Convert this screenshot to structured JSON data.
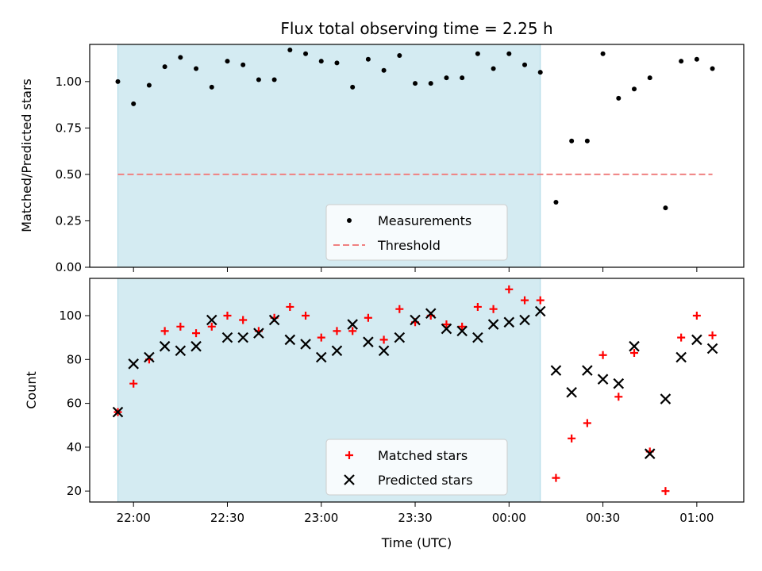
{
  "chart_data": [
    {
      "type": "scatter",
      "title": "Flux total observing time = 2.25 h",
      "ylabel": "Matched/Predicted stars",
      "xlabel": "",
      "ylim": [
        0,
        1.2
      ],
      "yticks": [
        "0.00",
        "0.25",
        "0.50",
        "0.75",
        "1.00"
      ],
      "ytick_values": [
        0,
        0.25,
        0.5,
        0.75,
        1.0
      ],
      "shaded_span": {
        "start": "21:55",
        "end": "00:10",
        "color": "#add8e6"
      },
      "legend": {
        "placement": "lower-center",
        "entries": [
          "Measurements",
          "Threshold"
        ]
      },
      "threshold": {
        "name": "Threshold",
        "y": 0.5,
        "x_start": "21:55",
        "x_end": "01:05",
        "color": "#f08080"
      },
      "series": [
        {
          "name": "Measurements",
          "color": "#000000",
          "marker": "dot",
          "x": [
            "21:55",
            "22:00",
            "22:05",
            "22:10",
            "22:15",
            "22:20",
            "22:25",
            "22:30",
            "22:35",
            "22:40",
            "22:45",
            "22:50",
            "22:55",
            "23:00",
            "23:05",
            "23:10",
            "23:15",
            "23:20",
            "23:25",
            "23:30",
            "23:35",
            "23:40",
            "23:45",
            "23:50",
            "23:55",
            "00:00",
            "00:05",
            "00:10",
            "00:15",
            "00:20",
            "00:25",
            "00:30",
            "00:35",
            "00:40",
            "00:45",
            "00:50",
            "00:55",
            "01:00",
            "01:05"
          ],
          "y": [
            1.0,
            0.88,
            0.98,
            1.08,
            1.13,
            1.07,
            0.97,
            1.11,
            1.09,
            1.01,
            1.01,
            1.17,
            1.15,
            1.11,
            1.1,
            0.97,
            1.12,
            1.06,
            1.14,
            0.99,
            0.99,
            1.02,
            1.02,
            1.15,
            1.07,
            1.15,
            1.09,
            1.05,
            0.35,
            0.68,
            0.68,
            1.15,
            0.91,
            0.96,
            1.02,
            0.32,
            1.11,
            1.12,
            1.07
          ]
        }
      ]
    },
    {
      "type": "scatter",
      "title": "",
      "ylabel": "Count",
      "xlabel": "Time (UTC)",
      "ylim": [
        15,
        117
      ],
      "yticks": [
        "20",
        "40",
        "60",
        "80",
        "100"
      ],
      "ytick_values": [
        20,
        40,
        60,
        80,
        100
      ],
      "xticks": [
        "22:00",
        "22:30",
        "23:00",
        "23:30",
        "00:00",
        "00:30",
        "01:00"
      ],
      "xlim": [
        "21:46",
        "01:15"
      ],
      "shaded_span": {
        "start": "21:55",
        "end": "00:10",
        "color": "#add8e6"
      },
      "legend": {
        "placement": "lower-center",
        "entries": [
          "Matched stars",
          "Predicted stars"
        ]
      },
      "series": [
        {
          "name": "Matched stars",
          "color": "#ff0000",
          "marker": "plus",
          "x": [
            "21:55",
            "22:00",
            "22:05",
            "22:10",
            "22:15",
            "22:20",
            "22:25",
            "22:30",
            "22:35",
            "22:40",
            "22:45",
            "22:50",
            "22:55",
            "23:00",
            "23:05",
            "23:10",
            "23:15",
            "23:20",
            "23:25",
            "23:30",
            "23:35",
            "23:40",
            "23:45",
            "23:50",
            "23:55",
            "00:00",
            "00:05",
            "00:10",
            "00:15",
            "00:20",
            "00:25",
            "00:30",
            "00:35",
            "00:40",
            "00:45",
            "00:50",
            "00:55",
            "01:00",
            "01:05"
          ],
          "y": [
            56,
            69,
            80,
            93,
            95,
            92,
            95,
            100,
            98,
            93,
            99,
            104,
            100,
            90,
            93,
            93,
            99,
            89,
            103,
            97,
            100,
            96,
            95,
            104,
            103,
            112,
            107,
            107,
            26,
            44,
            51,
            82,
            63,
            83,
            38,
            20,
            90,
            100,
            91
          ]
        },
        {
          "name": "Predicted stars",
          "color": "#000000",
          "marker": "x",
          "x": [
            "21:55",
            "22:00",
            "22:05",
            "22:10",
            "22:15",
            "22:20",
            "22:25",
            "22:30",
            "22:35",
            "22:40",
            "22:45",
            "22:50",
            "22:55",
            "23:00",
            "23:05",
            "23:10",
            "23:15",
            "23:20",
            "23:25",
            "23:30",
            "23:35",
            "23:40",
            "23:45",
            "23:50",
            "23:55",
            "00:00",
            "00:05",
            "00:10",
            "00:15",
            "00:20",
            "00:25",
            "00:30",
            "00:35",
            "00:40",
            "00:45",
            "00:50",
            "00:55",
            "01:00",
            "01:05"
          ],
          "y": [
            56,
            78,
            81,
            86,
            84,
            86,
            98,
            90,
            90,
            92,
            98,
            89,
            87,
            81,
            84,
            96,
            88,
            84,
            90,
            98,
            101,
            94,
            93,
            90,
            96,
            97,
            98,
            102,
            75,
            65,
            75,
            71,
            69,
            86,
            37,
            62,
            81,
            89,
            85
          ]
        }
      ]
    }
  ]
}
